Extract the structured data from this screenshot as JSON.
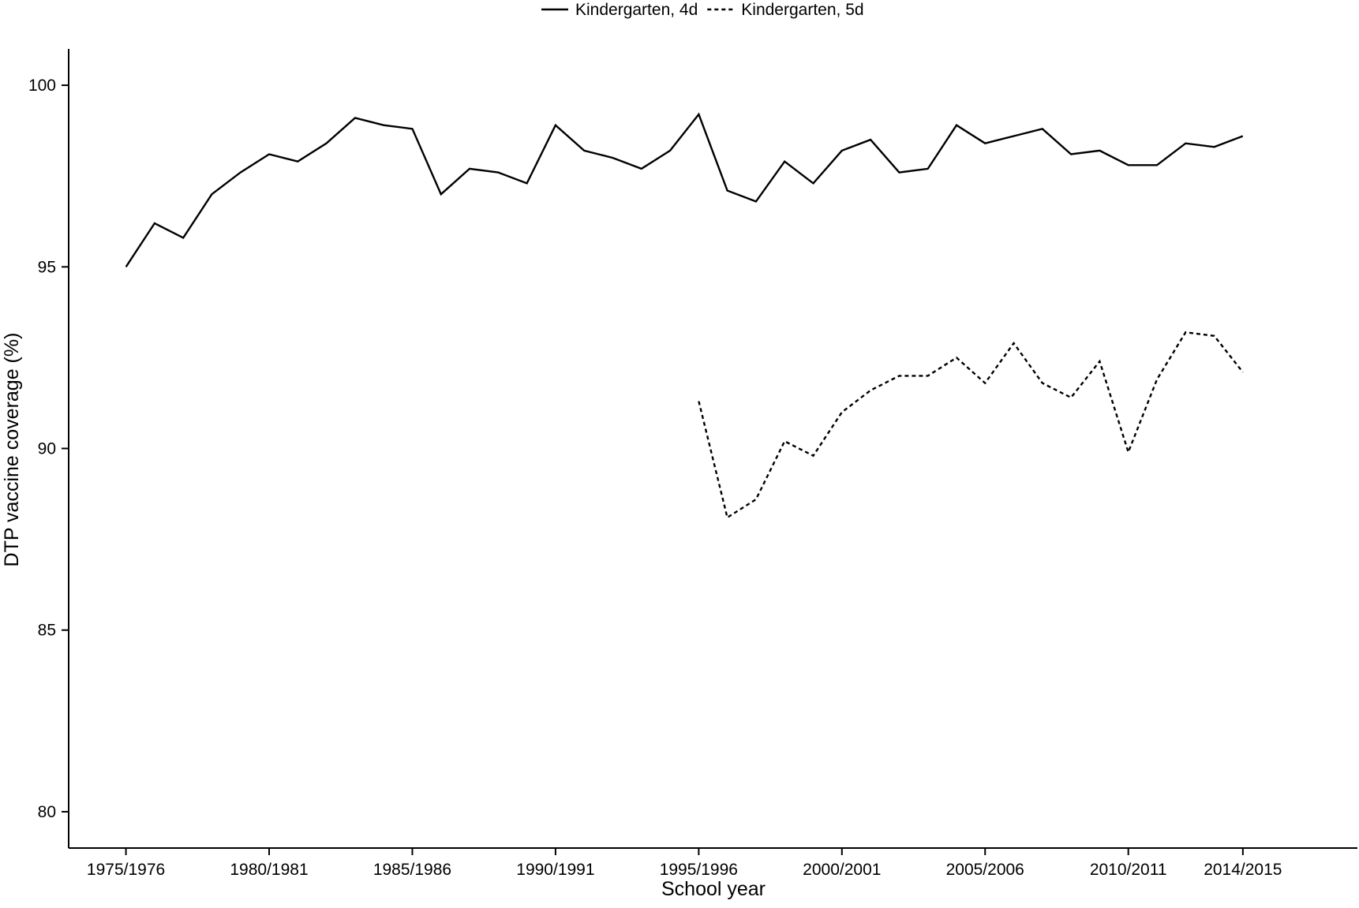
{
  "chart_data": {
    "type": "line",
    "title": "",
    "xlabel": "School year",
    "ylabel": "DTP vaccine coverage (%)",
    "ylim": [
      79,
      101
    ],
    "yticks": [
      80,
      85,
      90,
      95,
      100
    ],
    "xlim": [
      1973,
      2018
    ],
    "xticks": [
      {
        "x": 1975,
        "label": "1975/1976"
      },
      {
        "x": 1980,
        "label": "1980/1981"
      },
      {
        "x": 1985,
        "label": "1985/1986"
      },
      {
        "x": 1990,
        "label": "1990/1991"
      },
      {
        "x": 1995,
        "label": "1995/1996"
      },
      {
        "x": 2000,
        "label": "2000/2001"
      },
      {
        "x": 2005,
        "label": "2005/2006"
      },
      {
        "x": 2010,
        "label": "2010/2011"
      },
      {
        "x": 2014,
        "label": "2014/2015"
      }
    ],
    "grid": false,
    "legend_position": "top-center",
    "series": [
      {
        "name": "Kindergarten, 4d",
        "style": "solid",
        "color": "#000000",
        "x": [
          1975,
          1976,
          1977,
          1978,
          1979,
          1980,
          1981,
          1982,
          1983,
          1984,
          1985,
          1986,
          1987,
          1988,
          1989,
          1990,
          1991,
          1992,
          1993,
          1994,
          1995,
          1996,
          1997,
          1998,
          1999,
          2000,
          2001,
          2002,
          2003,
          2004,
          2005,
          2006,
          2007,
          2008,
          2009,
          2010,
          2011,
          2012,
          2013,
          2014
        ],
        "values": [
          95.0,
          96.2,
          95.8,
          97.0,
          97.6,
          98.1,
          97.9,
          98.4,
          99.1,
          98.9,
          98.8,
          97.0,
          97.7,
          97.6,
          97.3,
          98.9,
          98.2,
          98.0,
          97.7,
          98.2,
          99.2,
          97.1,
          96.8,
          97.9,
          97.3,
          98.2,
          98.5,
          97.6,
          97.7,
          98.9,
          98.4,
          98.6,
          98.8,
          98.1,
          98.2,
          97.8,
          97.8,
          98.4,
          98.3,
          98.6
        ]
      },
      {
        "name": "Kindergarten, 5d",
        "style": "dashed",
        "color": "#000000",
        "x": [
          1995,
          1996,
          1997,
          1998,
          1999,
          2000,
          2001,
          2002,
          2003,
          2004,
          2005,
          2006,
          2007,
          2008,
          2009,
          2010,
          2011,
          2012,
          2013,
          2014
        ],
        "values": [
          91.3,
          88.1,
          88.6,
          90.2,
          89.8,
          91.0,
          91.6,
          92.0,
          92.0,
          92.5,
          91.8,
          92.9,
          91.8,
          91.4,
          92.4,
          89.9,
          91.9,
          93.2,
          93.1,
          92.1
        ]
      }
    ]
  }
}
